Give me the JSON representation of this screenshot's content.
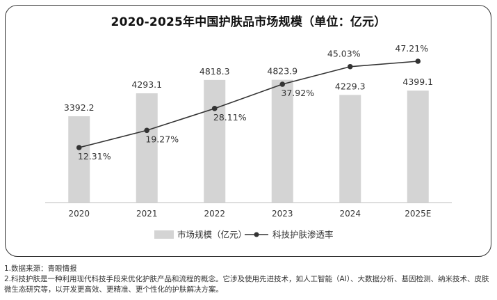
{
  "chart_data": {
    "type": "bar+line",
    "title": "2020-2025年中国护肤品市场规模（单位：亿元）",
    "categories": [
      "2020",
      "2021",
      "2022",
      "2023",
      "2024",
      "2025E"
    ],
    "series": [
      {
        "name": "市场规模（亿元）",
        "type": "bar",
        "values": [
          3392.2,
          4293.1,
          4818.3,
          4823.9,
          4229.3,
          4399.1
        ],
        "labels": [
          "3392.2",
          "4293.1",
          "4818.3",
          "4823.9",
          "4229.3",
          "4399.1"
        ],
        "color": "#d4d4d4"
      },
      {
        "name": "科技护肤渗透率",
        "type": "line",
        "values": [
          12.31,
          19.27,
          28.11,
          37.92,
          45.03,
          47.21
        ],
        "labels": [
          "12.31%",
          "19.27%",
          "28.11%",
          "37.92%",
          "45.03%",
          "47.21%"
        ],
        "color": "#333333"
      }
    ],
    "bar_axis_range": [
      0,
      6000
    ],
    "line_axis_range": [
      0,
      60
    ],
    "grid": false,
    "legend_position": "bottom"
  },
  "footnotes": [
    "1.数据来源：青眼情报",
    "2.科技护肤是一种利用现代科技手段来优化护肤产品和流程的概念。它涉及使用先进技术，如人工智能（AI）、大数据分析、基因检测、纳米技术、皮肤微生态研究等，以开发更高效、更精准、更个性化的护肤解决方案。"
  ]
}
